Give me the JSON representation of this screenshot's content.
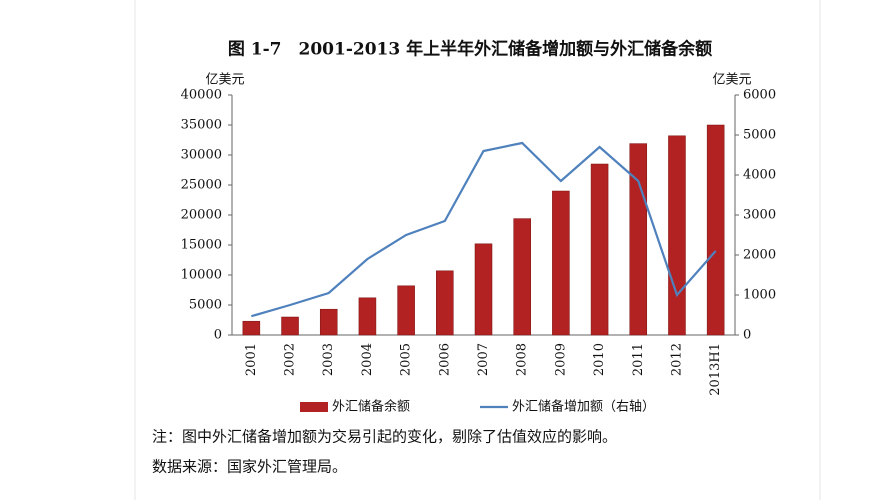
{
  "chart_data": {
    "type": "bar",
    "title": "图 1-7　2001-2013 年上半年外汇储备增加额与外汇储备余额",
    "y_label": "亿美元",
    "y2_label": "亿美元",
    "categories": [
      "2001",
      "2002",
      "2003",
      "2004",
      "2005",
      "2006",
      "2007",
      "2008",
      "2009",
      "2010",
      "2011",
      "2012",
      "2013H1"
    ],
    "series": [
      {
        "name": "外汇储备余额",
        "type": "bar",
        "color": "#b22222",
        "values": [
          2300,
          3000,
          4300,
          6200,
          8200,
          10700,
          15200,
          19400,
          24000,
          28500,
          31900,
          33200,
          35000
        ]
      },
      {
        "name": "外汇储备增加额（右轴）",
        "type": "line",
        "axis": "y2",
        "color": "#4f81bd",
        "values": [
          470,
          750,
          1050,
          1900,
          2500,
          2850,
          4600,
          4800,
          3850,
          4700,
          3850,
          1000,
          2100
        ]
      }
    ],
    "ylim": [
      0,
      40000
    ],
    "yticks": [
      0,
      5000,
      10000,
      15000,
      20000,
      25000,
      30000,
      35000,
      40000
    ],
    "y2lim": [
      0,
      6000
    ],
    "y2ticks": [
      0,
      1000,
      2000,
      3000,
      4000,
      5000,
      6000
    ],
    "grid": false,
    "notes": [
      "注：图中外汇储备增加额为交易引起的变化，剔除了估值效应的影响。",
      "数据来源：国家外汇管理局。"
    ]
  }
}
